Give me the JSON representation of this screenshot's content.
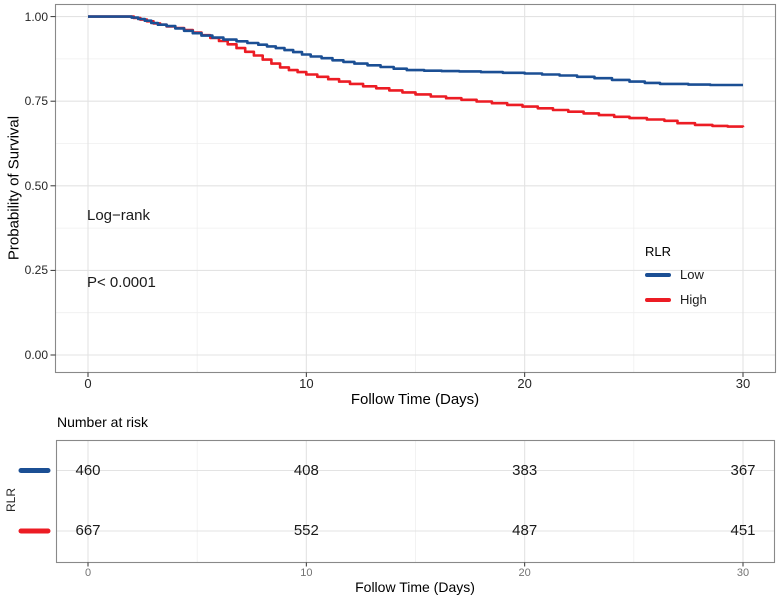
{
  "chart_data": {
    "type": "line",
    "subtype": "kaplan-meier-step",
    "xlabel": "Follow Time (Days)",
    "ylabel": "Probability of Survival",
    "xlim": [
      0,
      30
    ],
    "ylim": [
      0.0,
      1.0
    ],
    "grid": true,
    "x_major_ticks": [
      0,
      10,
      20,
      30
    ],
    "x_minor_ticks": [
      5,
      15,
      25
    ],
    "y_major_ticks": [
      0.0,
      0.25,
      0.5,
      0.75,
      1.0
    ],
    "y_major_tick_labels": [
      "0.00",
      "0.25",
      "0.50",
      "0.75",
      "1.00"
    ],
    "y_minor_ticks": [
      0.125,
      0.375,
      0.625,
      0.875
    ],
    "colors": {
      "low": "#1B4F94",
      "high": "#EC1C24"
    },
    "annotations": [
      {
        "id": "logrank",
        "text": "Log−rank",
        "x": 0,
        "y": 0.41
      },
      {
        "id": "pvalue",
        "text": "P< 0.0001",
        "x": 0,
        "y": 0.22
      }
    ],
    "legend": {
      "title": "RLR",
      "position": "right-middle",
      "entries": [
        {
          "label": "Low",
          "color": "#1B4F94"
        },
        {
          "label": "High",
          "color": "#EC1C24"
        }
      ]
    },
    "series": [
      {
        "name": "High",
        "color": "#EC1C24",
        "points": [
          [
            0,
            1
          ],
          [
            1.8,
            1
          ],
          [
            2.1,
            0.996
          ],
          [
            2.4,
            0.991
          ],
          [
            2.7,
            0.986
          ],
          [
            3,
            0.98
          ],
          [
            3.3,
            0.976
          ],
          [
            3.6,
            0.971
          ],
          [
            4,
            0.966
          ],
          [
            4.4,
            0.96
          ],
          [
            4.8,
            0.953
          ],
          [
            5.2,
            0.945
          ],
          [
            5.6,
            0.937
          ],
          [
            6,
            0.928
          ],
          [
            6.4,
            0.918
          ],
          [
            6.8,
            0.907
          ],
          [
            7.2,
            0.896
          ],
          [
            7.6,
            0.885
          ],
          [
            8,
            0.873
          ],
          [
            8.4,
            0.861
          ],
          [
            8.8,
            0.85
          ],
          [
            9.2,
            0.842
          ],
          [
            9.6,
            0.836
          ],
          [
            10,
            0.829
          ],
          [
            10.5,
            0.822
          ],
          [
            11,
            0.815
          ],
          [
            11.5,
            0.808
          ],
          [
            12,
            0.801
          ],
          [
            12.6,
            0.794
          ],
          [
            13.2,
            0.788
          ],
          [
            13.8,
            0.782
          ],
          [
            14.4,
            0.776
          ],
          [
            15,
            0.77
          ],
          [
            15.7,
            0.764
          ],
          [
            16.4,
            0.759
          ],
          [
            17.1,
            0.754
          ],
          [
            17.8,
            0.749
          ],
          [
            18.5,
            0.744
          ],
          [
            19.2,
            0.739
          ],
          [
            19.9,
            0.734
          ],
          [
            20.6,
            0.729
          ],
          [
            21.3,
            0.724
          ],
          [
            22,
            0.719
          ],
          [
            22.7,
            0.714
          ],
          [
            23.4,
            0.709
          ],
          [
            24.1,
            0.704
          ],
          [
            24.8,
            0.7
          ],
          [
            25.6,
            0.696
          ],
          [
            26.4,
            0.692
          ],
          [
            27,
            0.685
          ],
          [
            27.8,
            0.68
          ],
          [
            28.6,
            0.677
          ],
          [
            29.3,
            0.675
          ],
          [
            30,
            0.673
          ]
        ]
      },
      {
        "name": "Low",
        "color": "#1B4F94",
        "points": [
          [
            0,
            1
          ],
          [
            1.8,
            1
          ],
          [
            2,
            0.997
          ],
          [
            2.3,
            0.993
          ],
          [
            2.6,
            0.988
          ],
          [
            2.9,
            0.981
          ],
          [
            3.2,
            0.976
          ],
          [
            3.6,
            0.972
          ],
          [
            4,
            0.965
          ],
          [
            4.4,
            0.958
          ],
          [
            4.8,
            0.951
          ],
          [
            5.2,
            0.944
          ],
          [
            5.7,
            0.938
          ],
          [
            6.2,
            0.932
          ],
          [
            6.8,
            0.927
          ],
          [
            7.3,
            0.922
          ],
          [
            7.8,
            0.917
          ],
          [
            8.2,
            0.912
          ],
          [
            8.6,
            0.907
          ],
          [
            9,
            0.901
          ],
          [
            9.4,
            0.895
          ],
          [
            9.8,
            0.888
          ],
          [
            10.2,
            0.882
          ],
          [
            10.7,
            0.877
          ],
          [
            11.2,
            0.871
          ],
          [
            11.7,
            0.866
          ],
          [
            12.2,
            0.861
          ],
          [
            12.8,
            0.856
          ],
          [
            13.4,
            0.851
          ],
          [
            14,
            0.846
          ],
          [
            14.6,
            0.842
          ],
          [
            15.4,
            0.84
          ],
          [
            16.2,
            0.839
          ],
          [
            17,
            0.838
          ],
          [
            18,
            0.836
          ],
          [
            19,
            0.834
          ],
          [
            20,
            0.832
          ],
          [
            20.8,
            0.829
          ],
          [
            21.6,
            0.826
          ],
          [
            22.4,
            0.822
          ],
          [
            23.2,
            0.818
          ],
          [
            24,
            0.813
          ],
          [
            24.8,
            0.808
          ],
          [
            25.5,
            0.804
          ],
          [
            26.2,
            0.801
          ],
          [
            27.5,
            0.799
          ],
          [
            28.5,
            0.798
          ],
          [
            30,
            0.798
          ]
        ]
      }
    ],
    "risk_table": {
      "title": "Number at risk",
      "axis_label": "RLR",
      "xlabel": "Follow Time (Days)",
      "x_ticks": [
        0,
        10,
        20,
        30
      ],
      "rows": [
        {
          "name": "Low",
          "color": "#1B4F94",
          "counts": [
            460,
            408,
            383,
            367
          ]
        },
        {
          "name": "High",
          "color": "#EC1C24",
          "counts": [
            667,
            552,
            487,
            451
          ]
        }
      ]
    }
  }
}
